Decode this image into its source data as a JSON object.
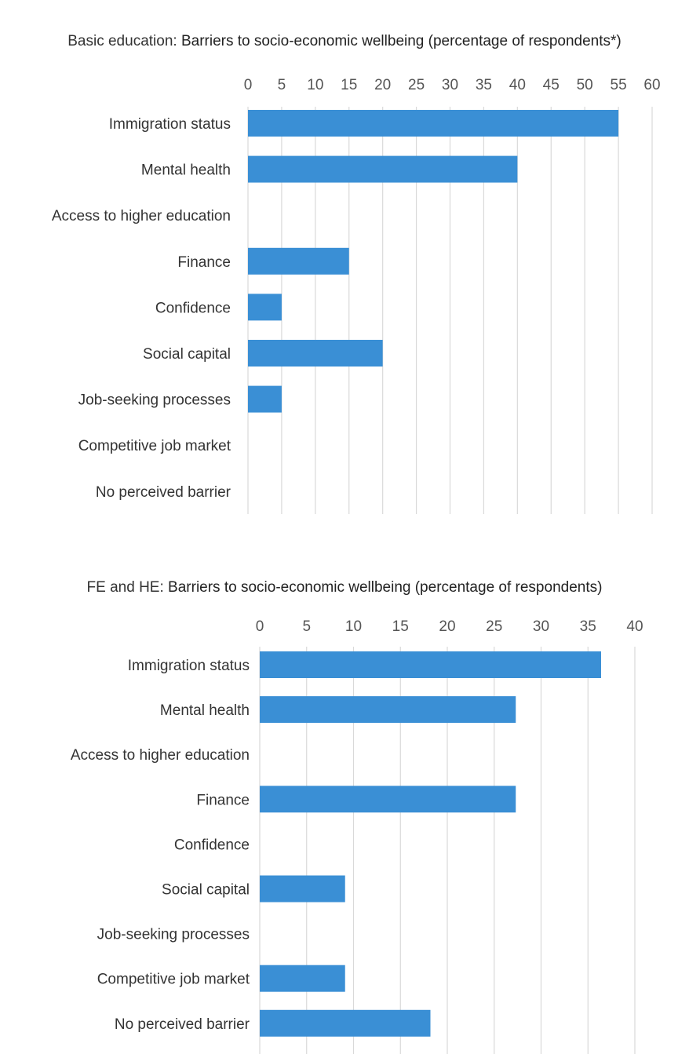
{
  "chart_data": [
    {
      "type": "bar",
      "orientation": "horizontal",
      "title_prefix": "Basic education:",
      "title": "Barriers to socio-economic wellbeing (percentage of respondents*)",
      "categories": [
        "Immigration status",
        "Mental health",
        "Access to higher education",
        "Finance",
        "Confidence",
        "Social capital",
        "Job-seeking processes",
        "Competitive job market",
        "No perceived barrier"
      ],
      "values": [
        55,
        40,
        0,
        15,
        5,
        20,
        5,
        0,
        0
      ],
      "xlim": [
        0,
        60
      ],
      "ticks": [
        0,
        5,
        10,
        15,
        20,
        25,
        30,
        35,
        40,
        45,
        50,
        55,
        60
      ],
      "axis_position": "top",
      "grid": true,
      "bar_color": "#3a8fd5",
      "grid_color": "#d9d9d9"
    },
    {
      "type": "bar",
      "orientation": "horizontal",
      "title_prefix": "FE and HE:",
      "title": "Barriers to socio-economic wellbeing (percentage of respondents)",
      "categories": [
        "Immigration status",
        "Mental health",
        "Access to higher education",
        "Finance",
        "Confidence",
        "Social capital",
        "Job-seeking processes",
        "Competitive job market",
        "No perceived barrier"
      ],
      "values": [
        36.4,
        27.3,
        0,
        27.3,
        0,
        9.1,
        0,
        9.1,
        18.2
      ],
      "xlim": [
        0,
        40
      ],
      "ticks": [
        0,
        5,
        10,
        15,
        20,
        25,
        30,
        35,
        40
      ],
      "axis_position": "top",
      "grid": true,
      "bar_color": "#3a8fd5",
      "grid_color": "#d9d9d9"
    }
  ]
}
